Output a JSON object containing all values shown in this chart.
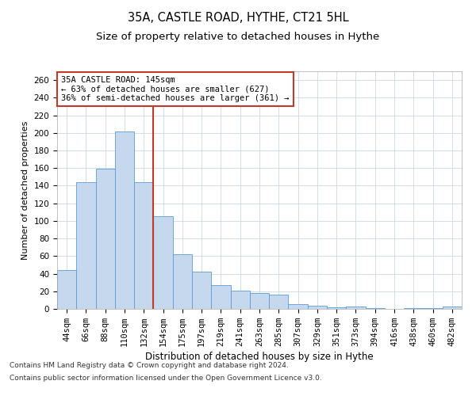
{
  "title1": "35A, CASTLE ROAD, HYTHE, CT21 5HL",
  "title2": "Size of property relative to detached houses in Hythe",
  "xlabel": "Distribution of detached houses by size in Hythe",
  "ylabel": "Number of detached properties",
  "categories": [
    "44sqm",
    "66sqm",
    "88sqm",
    "110sqm",
    "132sqm",
    "154sqm",
    "175sqm",
    "197sqm",
    "219sqm",
    "241sqm",
    "263sqm",
    "285sqm",
    "307sqm",
    "329sqm",
    "351sqm",
    "373sqm",
    "394sqm",
    "416sqm",
    "438sqm",
    "460sqm",
    "482sqm"
  ],
  "values": [
    44,
    144,
    159,
    202,
    144,
    105,
    62,
    42,
    27,
    21,
    18,
    16,
    5,
    4,
    2,
    3,
    1,
    0,
    1,
    1,
    3
  ],
  "bar_color": "#c5d8ed",
  "bar_edge_color": "#5b9bd5",
  "bar_width": 1.0,
  "property_label": "35A CASTLE ROAD: 145sqm",
  "stat1": "← 63% of detached houses are smaller (627)",
  "stat2": "36% of semi-detached houses are larger (361) →",
  "vline_color": "#c0392b",
  "vline_x": 4.5,
  "annotation_box_color": "#c0392b",
  "ylim": [
    0,
    270
  ],
  "yticks": [
    0,
    20,
    40,
    60,
    80,
    100,
    120,
    140,
    160,
    180,
    200,
    220,
    240,
    260
  ],
  "grid_color": "#c8d8ea",
  "footer_line1": "Contains HM Land Registry data © Crown copyright and database right 2024.",
  "footer_line2": "Contains public sector information licensed under the Open Government Licence v3.0.",
  "title1_fontsize": 10.5,
  "title2_fontsize": 9.5,
  "xlabel_fontsize": 8.5,
  "ylabel_fontsize": 8,
  "tick_fontsize": 7.5,
  "annotation_fontsize": 7.5,
  "footer_fontsize": 6.5
}
